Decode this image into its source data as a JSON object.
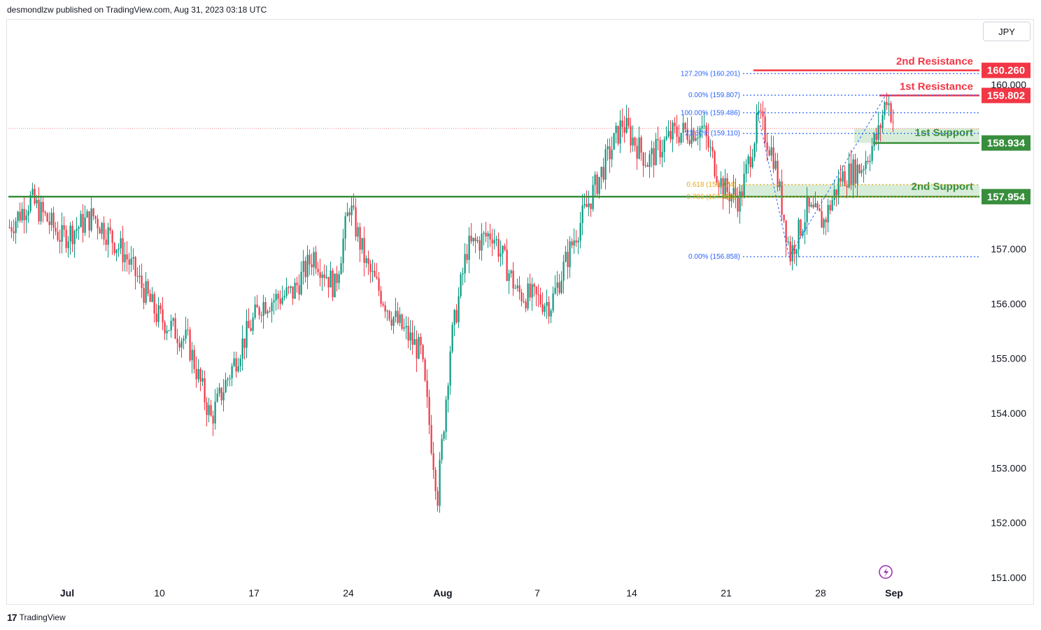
{
  "header": {
    "published": "desmondlzw published on TradingView.com, Aug 31, 2023 03:18 UTC"
  },
  "currency_button": "JPY",
  "footer": {
    "brand": "TradingView",
    "logo_glyph": "17"
  },
  "colors": {
    "up": "#089981",
    "down": "#f23645",
    "resistance": "#f23645",
    "support": "#388e3c",
    "fib": "#2962ff",
    "fib_gold": "#e6a817",
    "zone_fill": "#c8e6c9"
  },
  "chart_data": {
    "type": "candlestick",
    "ylim": [
      150.9,
      161.0
    ],
    "price_ticks": [
      "160.000",
      "157.000",
      "156.000",
      "155.000",
      "154.000",
      "153.000",
      "152.000",
      "151.000"
    ],
    "price_tick_values": [
      160,
      157,
      156,
      155,
      154,
      153,
      152,
      151
    ],
    "x_ticks": [
      {
        "label": "Jul",
        "bar": 28
      },
      {
        "label": "10",
        "bar": 72
      },
      {
        "label": "17",
        "bar": 117
      },
      {
        "label": "24",
        "bar": 162
      },
      {
        "label": "Aug",
        "bar": 207
      },
      {
        "label": "7",
        "bar": 252
      },
      {
        "label": "14",
        "bar": 297
      },
      {
        "label": "21",
        "bar": 342
      },
      {
        "label": "28",
        "bar": 387
      },
      {
        "label": "Sep",
        "bar": 422
      }
    ],
    "levels": [
      {
        "name": "2nd Resistance",
        "price": "160.260",
        "value": 160.26,
        "kind": "resistance"
      },
      {
        "name": "1st Resistance",
        "price": "159.802",
        "value": 159.802,
        "kind": "resistance"
      },
      {
        "name": "1st Support",
        "price": "158.934",
        "value": 158.934,
        "kind": "support"
      },
      {
        "name": "2nd Support",
        "price": "157.954",
        "value": 157.954,
        "kind": "support"
      }
    ],
    "fib_levels": [
      {
        "label": "127.20% (160.201)",
        "value": 160.201
      },
      {
        "label": "0.00% (159.807)",
        "value": 159.807
      },
      {
        "label": "100.00% (159.486)",
        "value": 159.486
      },
      {
        "label": "23.60% (159.110)",
        "value": 159.11
      },
      {
        "label": "0.618 (158.174)",
        "value": 158.174,
        "gold": true
      },
      {
        "label": "0.786 (157.950)",
        "value": 157.95,
        "gold": true
      },
      {
        "label": "0.00% (156.858)",
        "value": 156.858
      }
    ],
    "current_price": 159.2,
    "fib_line": [
      {
        "bar": 357,
        "value": 159.486
      },
      {
        "bar": 372,
        "value": 156.858
      },
      {
        "bar": 418,
        "value": 159.807
      }
    ],
    "candles_anchor": [
      {
        "bar": 0,
        "value": 157.4
      },
      {
        "bar": 10,
        "value": 157.9
      },
      {
        "bar": 25,
        "value": 157.2
      },
      {
        "bar": 40,
        "value": 157.6
      },
      {
        "bar": 55,
        "value": 156.9
      },
      {
        "bar": 70,
        "value": 155.8
      },
      {
        "bar": 85,
        "value": 155.3
      },
      {
        "bar": 96,
        "value": 153.9
      },
      {
        "bar": 110,
        "value": 155.2
      },
      {
        "bar": 120,
        "value": 156.0
      },
      {
        "bar": 135,
        "value": 156.2
      },
      {
        "bar": 145,
        "value": 156.9
      },
      {
        "bar": 155,
        "value": 156.3
      },
      {
        "bar": 162,
        "value": 157.8
      },
      {
        "bar": 170,
        "value": 156.7
      },
      {
        "bar": 182,
        "value": 155.8
      },
      {
        "bar": 196,
        "value": 155.1
      },
      {
        "bar": 204,
        "value": 152.5
      },
      {
        "bar": 210,
        "value": 155.2
      },
      {
        "bar": 218,
        "value": 157.0
      },
      {
        "bar": 230,
        "value": 157.3
      },
      {
        "bar": 242,
        "value": 156.2
      },
      {
        "bar": 258,
        "value": 156.0
      },
      {
        "bar": 270,
        "value": 157.3
      },
      {
        "bar": 282,
        "value": 158.4
      },
      {
        "bar": 292,
        "value": 159.3
      },
      {
        "bar": 304,
        "value": 158.6
      },
      {
        "bar": 316,
        "value": 159.1
      },
      {
        "bar": 330,
        "value": 159.2
      },
      {
        "bar": 340,
        "value": 158.1
      },
      {
        "bar": 348,
        "value": 157.9
      },
      {
        "bar": 357,
        "value": 159.4
      },
      {
        "bar": 364,
        "value": 158.7
      },
      {
        "bar": 372,
        "value": 156.9
      },
      {
        "bar": 380,
        "value": 157.7
      },
      {
        "bar": 388,
        "value": 157.5
      },
      {
        "bar": 396,
        "value": 158.3
      },
      {
        "bar": 406,
        "value": 158.5
      },
      {
        "bar": 414,
        "value": 159.1
      },
      {
        "bar": 418,
        "value": 159.8
      },
      {
        "bar": 422,
        "value": 159.2
      }
    ]
  }
}
